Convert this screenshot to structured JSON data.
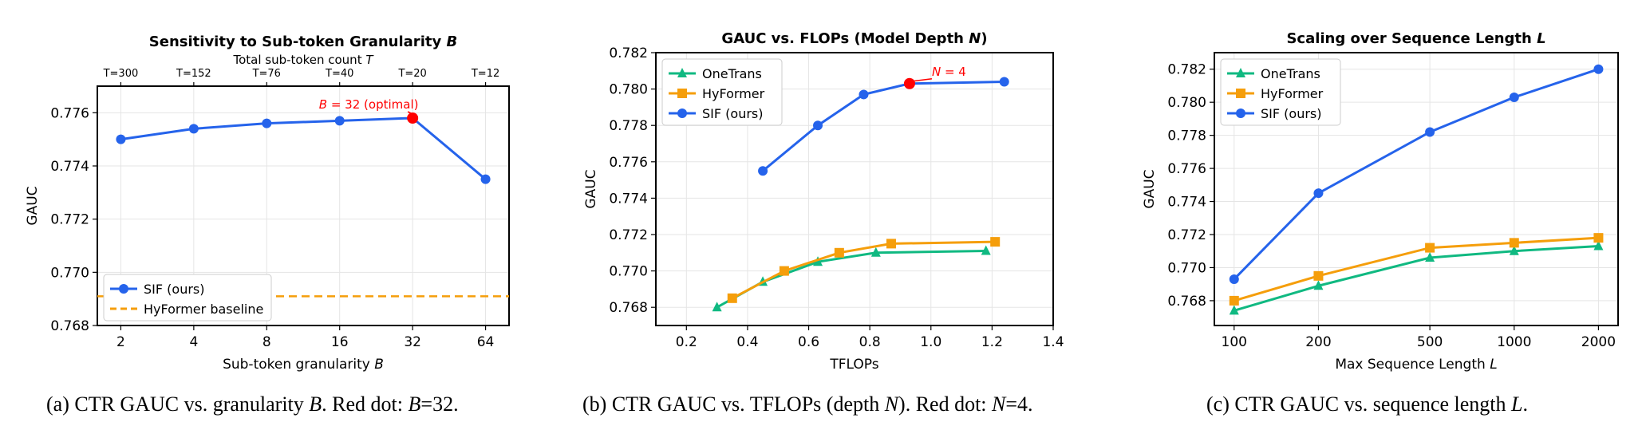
{
  "captions": {
    "a": {
      "prefix": "(a)  CTR GAUC vs. granularity ",
      "var": "B",
      "mid": ". Red dot: ",
      "var2": "B",
      "suffix": "=32."
    },
    "b": {
      "prefix": "(b)  CTR GAUC vs. TFLOPs (depth ",
      "var": "N",
      "mid": "). Red dot: ",
      "var2": "N",
      "suffix": "=4."
    },
    "c": {
      "prefix": "(c)  CTR GAUC vs. sequence length ",
      "var": "L",
      "mid": ".",
      "var2": "",
      "suffix": ""
    }
  },
  "colors": {
    "onetrans": "#10b981",
    "hyformer": "#f59e0b",
    "sif": "#2563eb",
    "highlight": "#ff0000"
  },
  "chart_data": [
    {
      "id": "a",
      "type": "line",
      "title": "Sensitivity to Sub-token Granularity ",
      "title_var": "B",
      "xlabel": "Sub-token granularity ",
      "xlabel_var": "B",
      "ylabel": "GAUC",
      "x_scale": "log2",
      "categories": [
        "2",
        "4",
        "8",
        "16",
        "32",
        "64"
      ],
      "x": [
        2,
        4,
        8,
        16,
        32,
        64
      ],
      "xlim": [
        1.6,
        80
      ],
      "ylim": [
        0.768,
        0.777
      ],
      "yticks": [
        0.768,
        0.77,
        0.772,
        0.774,
        0.776
      ],
      "top_axis": {
        "label": "Total sub-token count ",
        "label_var": "T",
        "ticks": [
          "T=300",
          "T=152",
          "T=76",
          "T=40",
          "T=20",
          "T=12"
        ]
      },
      "series": [
        {
          "name": "SIF (ours)",
          "key": "sif",
          "marker": "circle",
          "values": [
            0.775,
            0.7754,
            0.7756,
            0.7757,
            0.7758,
            0.7735
          ]
        }
      ],
      "baseline": {
        "name": "HyFormer baseline",
        "key": "hyformer",
        "value": 0.7691
      },
      "highlight": {
        "x": 32,
        "y": 0.7758,
        "label": "B = 32 (optimal)"
      },
      "legend": "lower-left",
      "grid": true
    },
    {
      "id": "b",
      "type": "line",
      "title": "GAUC vs. FLOPs (Model Depth ",
      "title_var": "N",
      "title_suffix": ")",
      "xlabel": "TFLOPs",
      "ylabel": "GAUC",
      "x_scale": "linear",
      "xlim": [
        0.1,
        1.4
      ],
      "xticks": [
        0.2,
        0.4,
        0.6,
        0.8,
        1.0,
        1.2,
        1.4
      ],
      "ylim": [
        0.767,
        0.782
      ],
      "yticks": [
        0.768,
        0.77,
        0.772,
        0.774,
        0.776,
        0.778,
        0.78,
        0.782
      ],
      "series": [
        {
          "name": "OneTrans",
          "key": "onetrans",
          "marker": "triangle",
          "x": [
            0.3,
            0.45,
            0.63,
            0.82,
            1.18
          ],
          "values": [
            0.768,
            0.7694,
            0.7705,
            0.771,
            0.7711
          ]
        },
        {
          "name": "HyFormer",
          "key": "hyformer",
          "marker": "square",
          "x": [
            0.35,
            0.52,
            0.7,
            0.87,
            1.21
          ],
          "values": [
            0.7685,
            0.77,
            0.771,
            0.7715,
            0.7716
          ]
        },
        {
          "name": "SIF (ours)",
          "key": "sif",
          "marker": "circle",
          "x": [
            0.45,
            0.63,
            0.78,
            0.93,
            1.24
          ],
          "values": [
            0.7755,
            0.778,
            0.7797,
            0.7803,
            0.7804
          ]
        }
      ],
      "highlight": {
        "x": 0.93,
        "y": 0.7803,
        "label": "N = 4"
      },
      "legend": "upper-left",
      "grid": true
    },
    {
      "id": "c",
      "type": "line",
      "title": "Scaling over Sequence Length ",
      "title_var": "L",
      "xlabel": "Max Sequence Length ",
      "xlabel_var": "L",
      "ylabel": "GAUC",
      "x_scale": "log",
      "x": [
        100,
        200,
        500,
        1000,
        2000
      ],
      "categories": [
        "100",
        "200",
        "500",
        "1000",
        "2000"
      ],
      "xlim": [
        85,
        2350
      ],
      "ylim": [
        0.7665,
        0.783
      ],
      "yticks": [
        0.768,
        0.77,
        0.772,
        0.774,
        0.776,
        0.778,
        0.78,
        0.782
      ],
      "series": [
        {
          "name": "OneTrans",
          "key": "onetrans",
          "marker": "triangle",
          "values": [
            0.7674,
            0.7689,
            0.7706,
            0.771,
            0.7713
          ]
        },
        {
          "name": "HyFormer",
          "key": "hyformer",
          "marker": "square",
          "values": [
            0.768,
            0.7695,
            0.7712,
            0.7715,
            0.7718
          ]
        },
        {
          "name": "SIF (ours)",
          "key": "sif",
          "marker": "circle",
          "values": [
            0.7693,
            0.7745,
            0.7782,
            0.7803,
            0.782
          ]
        }
      ],
      "legend": "upper-left",
      "grid": true
    }
  ]
}
